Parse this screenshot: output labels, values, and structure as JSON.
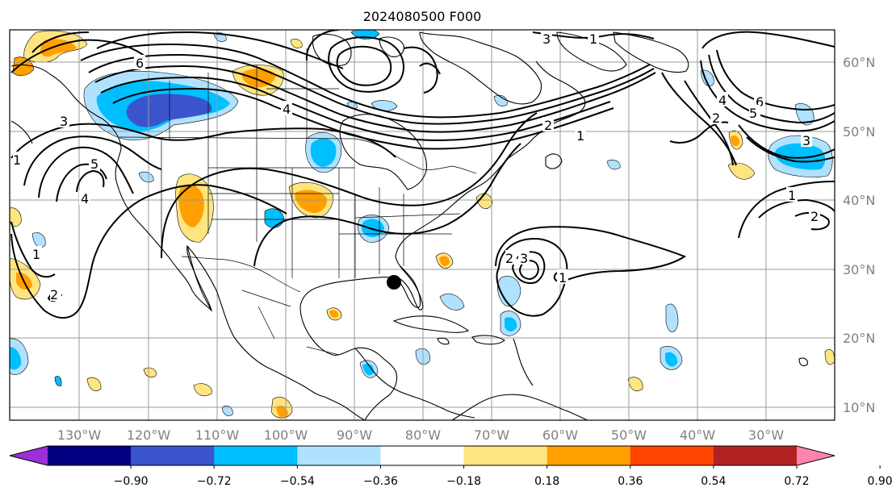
{
  "map": {
    "title": "2024080500 F000",
    "lat_labels": [
      "60°N",
      "50°N",
      "40°N",
      "30°N",
      "20°N",
      "10°N"
    ],
    "lon_labels": [
      "130°W",
      "120°W",
      "110°W",
      "100°W",
      "90°W",
      "80°W",
      "70°W",
      "60°W",
      "50°W",
      "40°W",
      "30°W"
    ],
    "contour_labels": [
      "6",
      "4",
      "2",
      "1",
      "3",
      "5",
      "4",
      "1",
      "1",
      "2",
      "3",
      "2",
      "3",
      "1",
      "1",
      "6",
      "5",
      "4",
      "2",
      "3",
      "1",
      "2"
    ],
    "marker_name": "storm-position-marker"
  },
  "colorbar": {
    "ticks": [
      "−0.90",
      "−0.72",
      "−0.54",
      "−0.36",
      "−0.18",
      "0.18",
      "0.36",
      "0.54",
      "0.72",
      "0.90"
    ],
    "colors": [
      "#9b30d8",
      "#000080",
      "#3a55cc",
      "#00bfff",
      "#b0e2ff",
      "#ffffff",
      "#ffe57f",
      "#ffa000",
      "#ff4500",
      "#b22222",
      "#ff85b0"
    ],
    "under_color": "#9b30d8",
    "over_color": "#ff85b0"
  },
  "fill_colors": {
    "light_blue": "#b0e2ff",
    "blue": "#00bfff",
    "dark_blue": "#3a55cc",
    "light_yellow": "#ffe57f",
    "orange": "#ffa000",
    "red": "#ff4500"
  }
}
